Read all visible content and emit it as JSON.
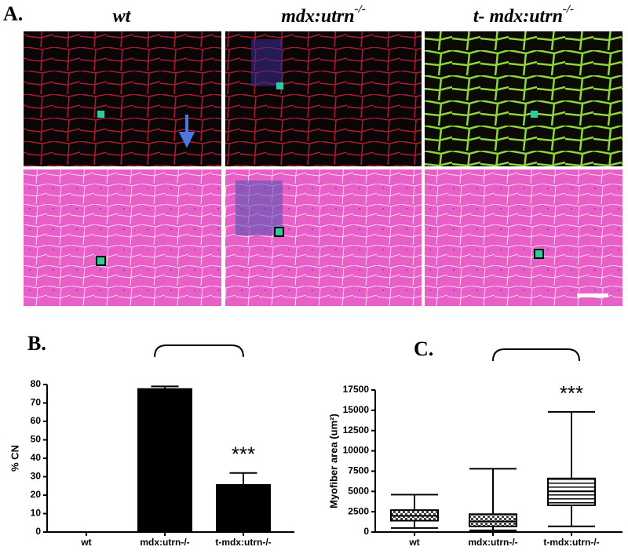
{
  "panel_a": {
    "label": "A.",
    "columns": [
      {
        "name": "wt"
      },
      {
        "name": "mdx:utrn",
        "sup": "-/-"
      },
      {
        "name": "t- mdx:utrn",
        "sup": "-/-"
      }
    ]
  },
  "chart_data": [
    {
      "type": "bar",
      "label": "B.",
      "ylabel": "% CN",
      "categories": [
        "wt",
        "mdx:utrn-/-",
        "t-mdx:utrn-/-"
      ],
      "values": [
        0,
        78,
        26
      ],
      "errors": [
        0,
        1,
        6
      ],
      "color": "#000000",
      "ylim": [
        0,
        80
      ],
      "yticks": [
        0,
        10,
        20,
        30,
        40,
        50,
        60,
        70,
        80
      ],
      "annotations": [
        {
          "category": 2,
          "text": "***"
        }
      ]
    },
    {
      "type": "box",
      "label": "C.",
      "ylabel": "Myofiber area (um²)",
      "categories": [
        "wt",
        "mdx:utrn-/-",
        "t-mdx:utrn-/-"
      ],
      "min": [
        500,
        200,
        700
      ],
      "q1": [
        1400,
        700,
        3300
      ],
      "median": [
        2000,
        1300,
        5000
      ],
      "q3": [
        2700,
        2200,
        6600
      ],
      "max": [
        4600,
        7800,
        14800
      ],
      "ylim": [
        0,
        17500
      ],
      "yticks": [
        0,
        2500,
        5000,
        7500,
        10000,
        12500,
        15000,
        17500
      ],
      "annotations": [
        {
          "category": 2,
          "text": "***"
        }
      ]
    }
  ]
}
